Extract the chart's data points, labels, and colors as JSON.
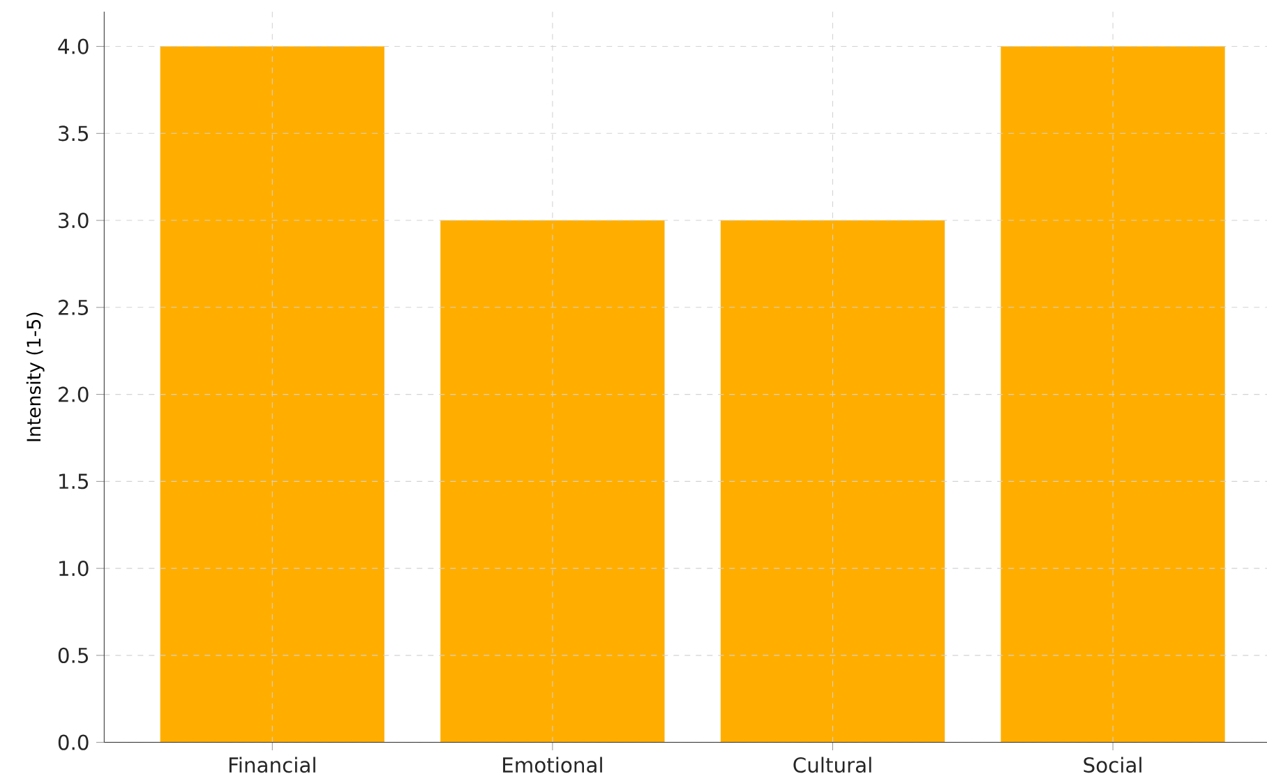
{
  "chart_data": {
    "type": "bar",
    "ylabel": "Intensity (1-5)",
    "categories": [
      "Financial",
      "Emotional",
      "Cultural",
      "Social"
    ],
    "values": [
      4,
      3,
      3,
      4
    ],
    "color": "#ffae00",
    "ylim": [
      0,
      4.2
    ],
    "yticks": [
      {
        "value": 0,
        "label": "0.0"
      },
      {
        "value": 0.5,
        "label": "0.5"
      },
      {
        "value": 1,
        "label": "1.0"
      },
      {
        "value": 1.5,
        "label": "1.5"
      },
      {
        "value": 2,
        "label": "2.0"
      },
      {
        "value": 2.5,
        "label": "2.5"
      },
      {
        "value": 3,
        "label": "3.0"
      },
      {
        "value": 3.5,
        "label": "3.5"
      },
      {
        "value": 4,
        "label": "4.0"
      }
    ],
    "grid": true
  }
}
